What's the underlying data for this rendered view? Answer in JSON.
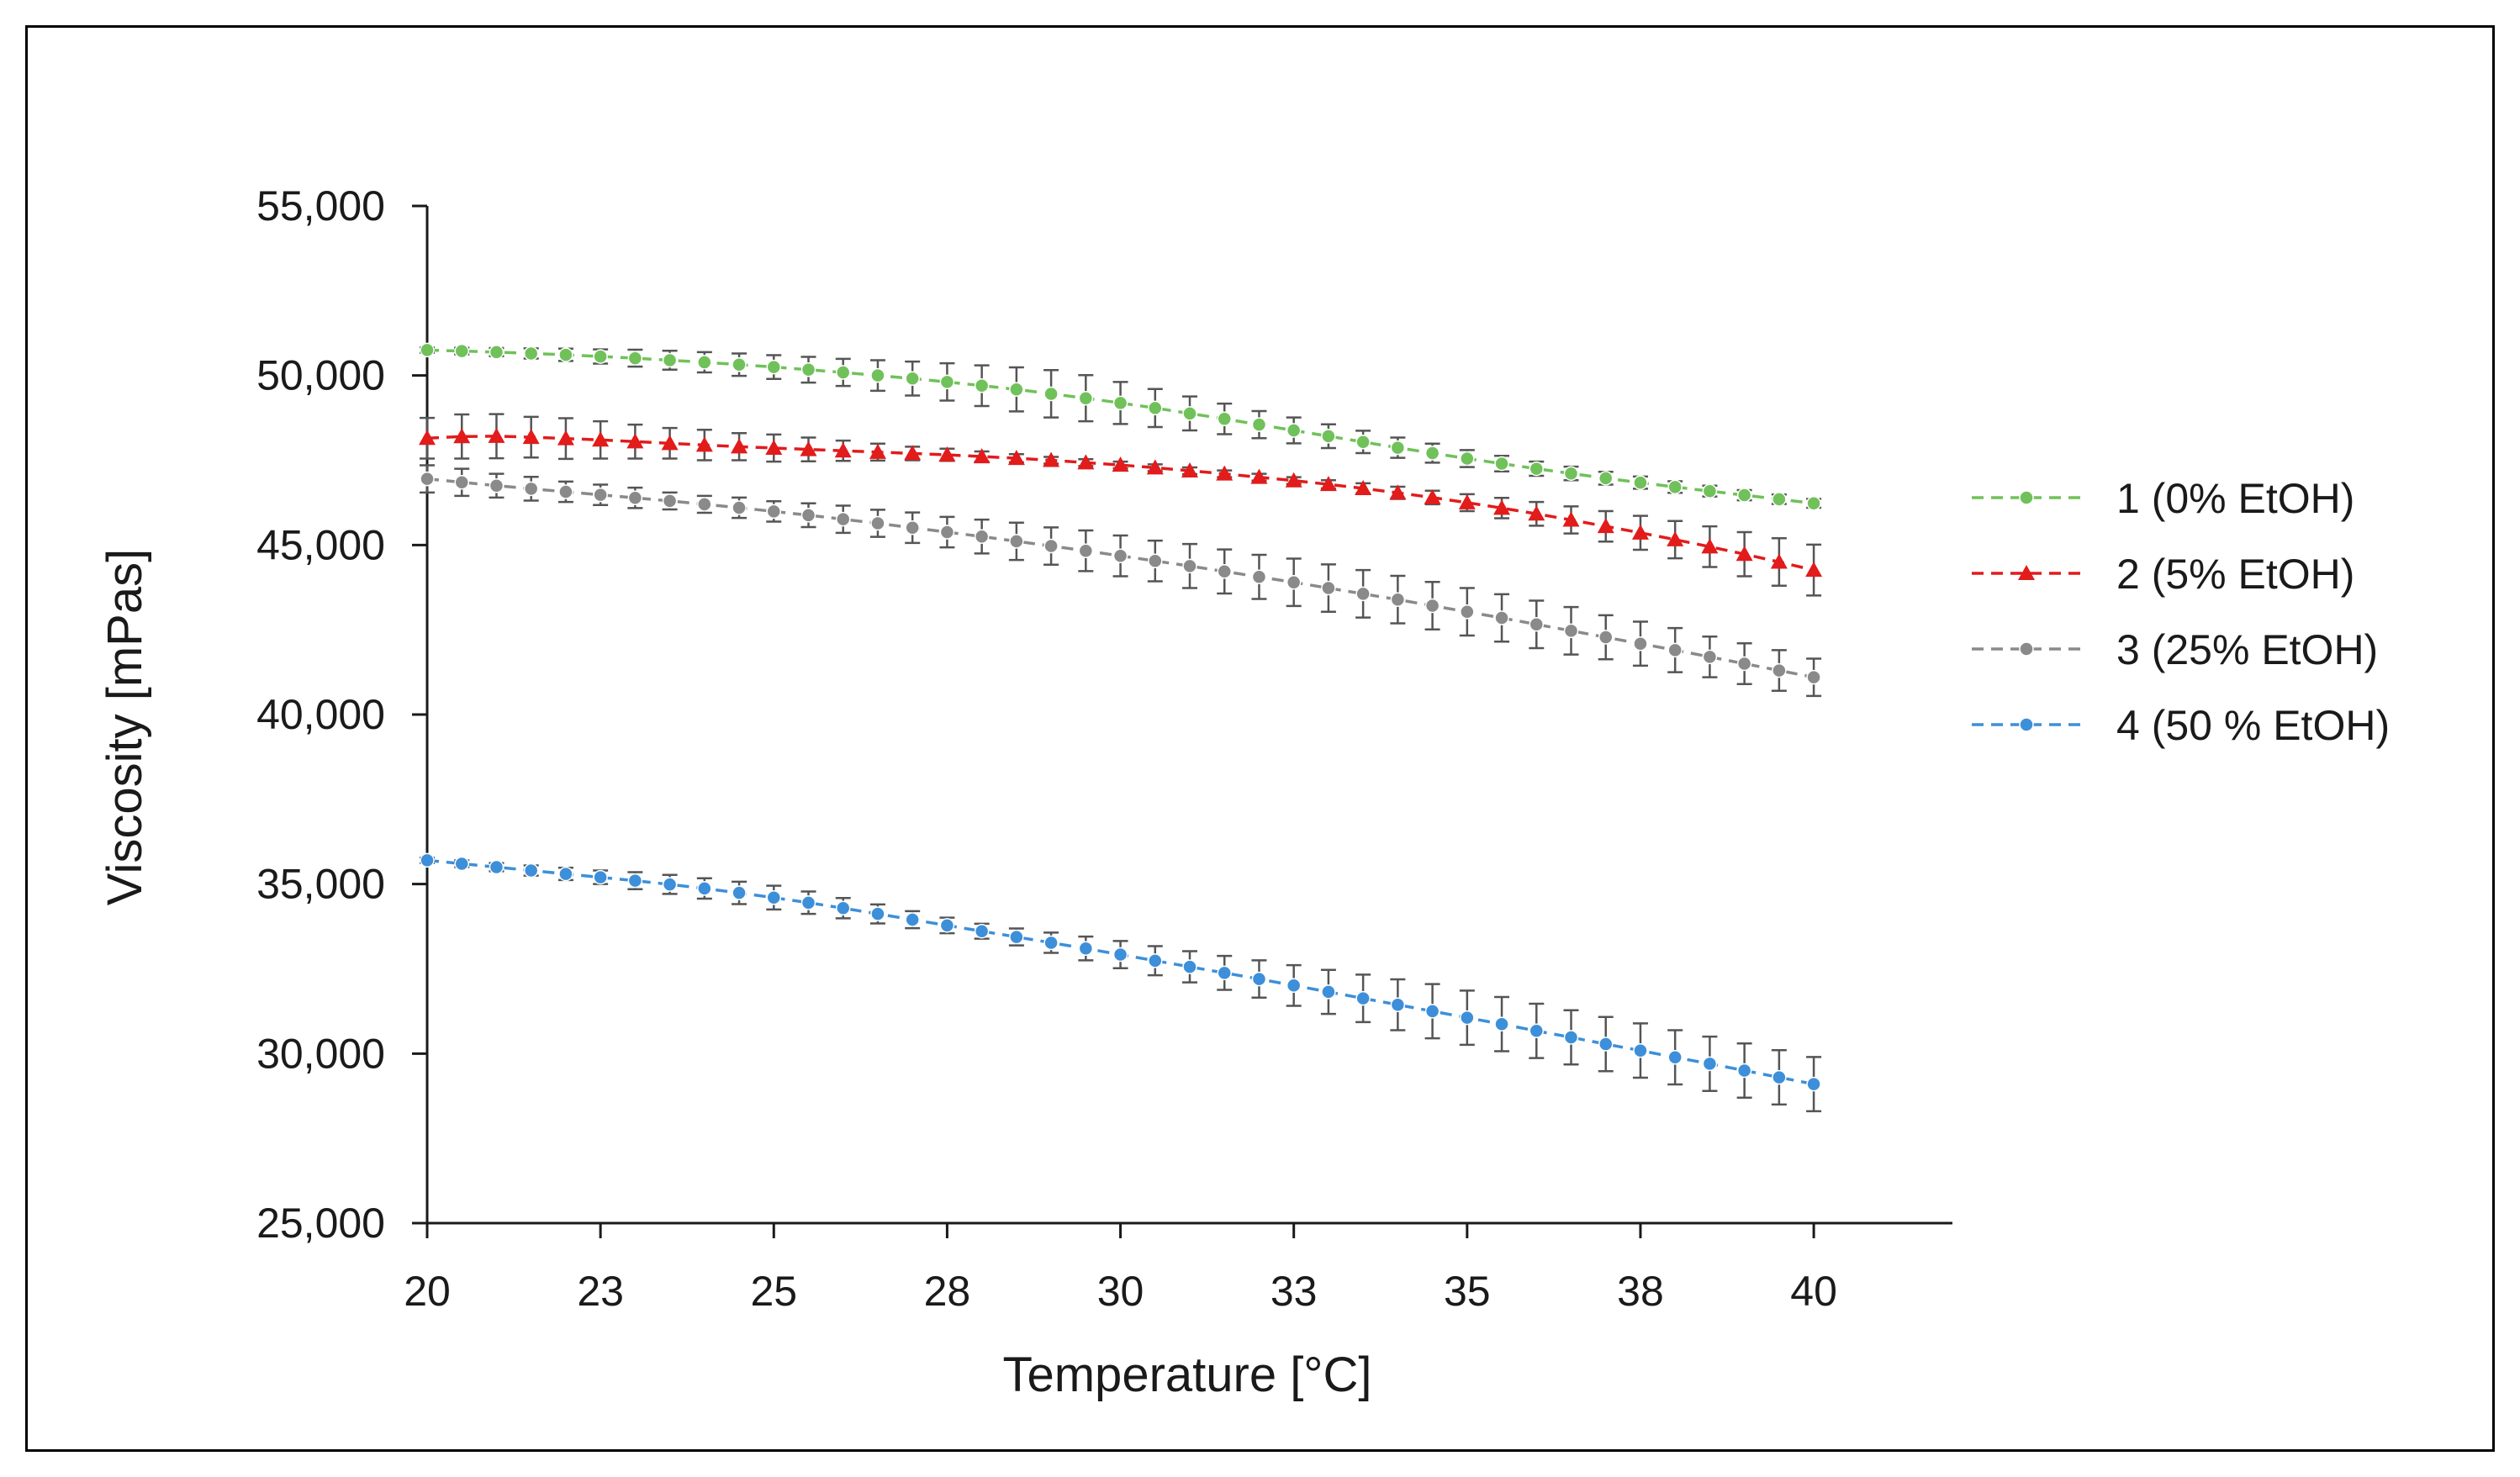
{
  "chart_data": {
    "type": "line",
    "title": "",
    "xlabel": "Temperature [°C]",
    "ylabel": "Viscosity [mPas]",
    "xlim": [
      20,
      42
    ],
    "ylim": [
      25000,
      55000
    ],
    "x_ticks": [
      20,
      22.5,
      25,
      27.5,
      30,
      32.5,
      35,
      37.5,
      40
    ],
    "x_tick_labels": [
      "20",
      "23",
      "25",
      "28",
      "30",
      "33",
      "35",
      "38",
      "40"
    ],
    "y_ticks": [
      25000,
      30000,
      35000,
      40000,
      45000,
      50000,
      55000
    ],
    "y_tick_labels": [
      "25,000",
      "30,000",
      "35,000",
      "40,000",
      "45,000",
      "50,000",
      "55,000"
    ],
    "grid": false,
    "legend_position": "right",
    "x": [
      20,
      20.5,
      21,
      21.5,
      22,
      22.5,
      23,
      23.5,
      24,
      24.5,
      25,
      25.5,
      26,
      26.5,
      27,
      27.5,
      28,
      28.5,
      29,
      29.5,
      30,
      30.5,
      31,
      31.5,
      32,
      32.5,
      33,
      33.5,
      34,
      34.5,
      35,
      35.5,
      36,
      36.5,
      37,
      37.5,
      38,
      38.5,
      39,
      39.5,
      40
    ],
    "series": [
      {
        "name": "1 (0% EtOH)",
        "color": "#70c15a",
        "marker": "circle",
        "values": [
          50750,
          50720,
          50690,
          50650,
          50610,
          50560,
          50510,
          50450,
          50390,
          50320,
          50250,
          50170,
          50090,
          50000,
          49910,
          49810,
          49700,
          49590,
          49460,
          49330,
          49190,
          49040,
          48880,
          48720,
          48550,
          48380,
          48210,
          48040,
          47870,
          47710,
          47550,
          47400,
          47250,
          47110,
          46970,
          46840,
          46710,
          46590,
          46470,
          46350,
          46230
        ],
        "errors": [
          80,
          100,
          120,
          150,
          180,
          210,
          250,
          280,
          300,
          330,
          350,
          380,
          400,
          450,
          500,
          550,
          600,
          650,
          700,
          680,
          620,
          560,
          500,
          450,
          400,
          380,
          350,
          330,
          300,
          280,
          250,
          230,
          210,
          200,
          190,
          180,
          170,
          160,
          150,
          140,
          130
        ]
      },
      {
        "name": "2 (5% EtOH)",
        "color": "#e21b1b",
        "marker": "triangle",
        "values": [
          48150,
          48200,
          48210,
          48180,
          48140,
          48100,
          48050,
          48000,
          47950,
          47900,
          47860,
          47820,
          47780,
          47740,
          47700,
          47660,
          47610,
          47560,
          47500,
          47430,
          47360,
          47280,
          47190,
          47100,
          47000,
          46900,
          46790,
          46670,
          46540,
          46400,
          46250,
          46090,
          45920,
          45740,
          45550,
          45360,
          45160,
          44950,
          44730,
          44500,
          44260
        ],
        "errors": [
          600,
          650,
          650,
          600,
          600,
          550,
          500,
          450,
          450,
          400,
          400,
          350,
          300,
          250,
          200,
          180,
          150,
          120,
          100,
          100,
          100,
          100,
          100,
          100,
          100,
          100,
          120,
          150,
          180,
          200,
          250,
          300,
          350,
          400,
          450,
          500,
          550,
          600,
          650,
          700,
          750
        ]
      },
      {
        "name": "3 (25% EtOH)",
        "color": "#8a8a8a",
        "marker": "circle",
        "values": [
          46950,
          46850,
          46750,
          46660,
          46570,
          46480,
          46390,
          46300,
          46200,
          46100,
          45990,
          45880,
          45760,
          45640,
          45510,
          45380,
          45250,
          45110,
          44970,
          44830,
          44680,
          44530,
          44380,
          44220,
          44060,
          43900,
          43730,
          43560,
          43390,
          43210,
          43030,
          42850,
          42660,
          42470,
          42280,
          42090,
          41900,
          41700,
          41500,
          41300,
          41100
        ],
        "errors": [
          400,
          400,
          350,
          350,
          300,
          300,
          300,
          250,
          250,
          300,
          300,
          350,
          400,
          400,
          450,
          450,
          500,
          550,
          550,
          600,
          600,
          600,
          650,
          650,
          650,
          700,
          700,
          700,
          700,
          700,
          700,
          700,
          700,
          700,
          650,
          650,
          650,
          600,
          600,
          600,
          550
        ]
      },
      {
        "name": "4 (50 % EtOH)",
        "color": "#3d8fd9",
        "marker": "circle",
        "values": [
          35700,
          35600,
          35500,
          35400,
          35300,
          35200,
          35100,
          34990,
          34870,
          34740,
          34600,
          34450,
          34290,
          34120,
          33950,
          33780,
          33610,
          33440,
          33270,
          33100,
          32920,
          32740,
          32560,
          32380,
          32200,
          32010,
          31820,
          31630,
          31440,
          31250,
          31060,
          30870,
          30670,
          30480,
          30280,
          30090,
          29890,
          29700,
          29500,
          29300,
          29100
        ],
        "errors": [
          80,
          100,
          120,
          150,
          180,
          200,
          250,
          280,
          300,
          330,
          350,
          330,
          300,
          280,
          250,
          230,
          220,
          250,
          300,
          350,
          400,
          430,
          460,
          500,
          550,
          600,
          650,
          700,
          750,
          800,
          800,
          800,
          800,
          800,
          800,
          800,
          800,
          800,
          800,
          800,
          800
        ]
      }
    ]
  }
}
